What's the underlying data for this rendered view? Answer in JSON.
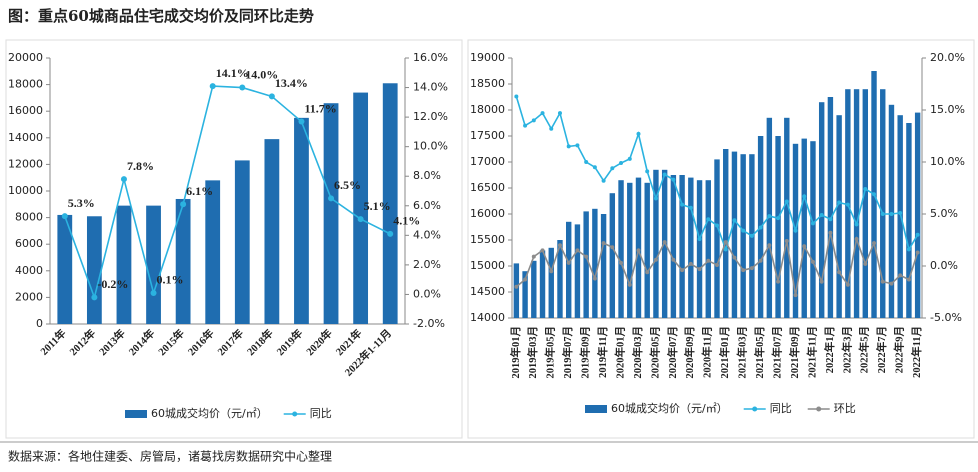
{
  "title": "图：重点60城商品住宅成交均价及同环比走势",
  "source": "数据来源：各地住建委、房管局，诸葛找房数据研究中心整理",
  "chart_data": [
    {
      "type": "bar_line",
      "categories": [
        "2011年",
        "2012年",
        "2013年",
        "2014年",
        "2015年",
        "2016年",
        "2017年",
        "2018年",
        "2019年",
        "2020年",
        "2021年",
        "2022年1-11月"
      ],
      "series": [
        {
          "name": "60城成交均价（元/㎡）",
          "type": "bar",
          "color": "#1f6db0",
          "values": [
            8200,
            8100,
            8900,
            8900,
            9400,
            10800,
            12300,
            13900,
            15500,
            16600,
            17400,
            18100
          ]
        },
        {
          "name": "同比",
          "type": "line",
          "axis": "y2",
          "color": "#2bb3e0",
          "values": [
            5.3,
            -0.2,
            7.8,
            0.1,
            6.1,
            14.1,
            14.0,
            13.4,
            11.7,
            6.5,
            5.1,
            4.1
          ],
          "value_labels": [
            "5.3%",
            "-0.2%",
            "7.8%",
            "0.1%",
            "6.1%",
            "14.1%",
            "14.0%",
            "13.4%",
            "11.7%",
            "6.5%",
            "5.1%",
            "4.1%"
          ]
        }
      ],
      "ylim": [
        0,
        20000
      ],
      "yticks": [
        0,
        2000,
        4000,
        6000,
        8000,
        10000,
        12000,
        14000,
        16000,
        18000,
        20000
      ],
      "y2lim": [
        -2,
        16
      ],
      "y2ticks": [
        {
          "value": -2,
          "label": "-2.0%"
        },
        {
          "value": 0,
          "label": "0.0%"
        },
        {
          "value": 2,
          "label": "2.0%"
        },
        {
          "value": 4,
          "label": "4.0%"
        },
        {
          "value": 6,
          "label": "6.0%"
        },
        {
          "value": 8,
          "label": "8.0%"
        },
        {
          "value": 10,
          "label": "10.0%"
        },
        {
          "value": 12,
          "label": "12.0%"
        },
        {
          "value": 14,
          "label": "14.0%"
        },
        {
          "value": 16,
          "label": "16.0%"
        }
      ]
    },
    {
      "type": "bar_line",
      "categories": [
        "2019年01月",
        null,
        "2019年03月",
        null,
        "2019年05月",
        null,
        "2019年07月",
        null,
        "2019年09月",
        null,
        "2019年11月",
        null,
        "2020年01月",
        null,
        "2020年03月",
        null,
        "2020年05月",
        null,
        "2020年07月",
        null,
        "2020年09月",
        null,
        "2020年11月",
        null,
        "2021年01月",
        null,
        "2021年03月",
        null,
        "2021年05月",
        null,
        "2021年07月",
        null,
        "2021年09月",
        null,
        "2021年11月",
        null,
        "2022年1月",
        null,
        "2022年3月",
        null,
        "2022年5月",
        null,
        "2022年7月",
        null,
        "2022年9月",
        null,
        "2022年11月"
      ],
      "series": [
        {
          "name": "60城成交均价（元/㎡）",
          "type": "bar",
          "color": "#1f6db0",
          "values": [
            15050,
            14900,
            15100,
            15300,
            15350,
            15500,
            15850,
            15800,
            16050,
            16100,
            16000,
            16400,
            16650,
            16600,
            16700,
            16600,
            16850,
            16850,
            16750,
            16750,
            16700,
            16650,
            16650,
            17050,
            17250,
            17200,
            17150,
            17150,
            17500,
            17850,
            17500,
            17850,
            17350,
            17450,
            17400,
            18150,
            18250,
            17900,
            18400,
            18400,
            18400,
            18750,
            18400,
            18100,
            17900,
            17750,
            17950
          ]
        },
        {
          "name": "同比",
          "type": "line",
          "axis": "y2",
          "color": "#2bb3e0",
          "values": [
            16.3,
            13.5,
            14.0,
            14.7,
            13.2,
            14.7,
            11.5,
            11.6,
            10.0,
            9.5,
            8.2,
            9.4,
            9.9,
            10.3,
            12.7,
            9.1,
            6.5,
            8.8,
            8.3,
            5.9,
            5.6,
            2.6,
            4.5,
            3.9,
            1.6,
            4.4,
            3.4,
            2.9,
            3.7,
            4.8,
            4.6,
            6.2,
            3.4,
            6.7,
            4.1,
            4.9,
            4.5,
            6.1,
            5.9,
            4.0,
            7.4,
            6.9,
            5.0,
            5.0,
            5.1,
            1.6,
            3.0
          ]
        },
        {
          "name": "环比",
          "type": "line",
          "axis": "y2",
          "color": "#8c8c8c",
          "values": [
            -2.0,
            -1.3,
            0.9,
            1.5,
            -0.5,
            2.0,
            0.3,
            1.5,
            0.9,
            -1.2,
            2.2,
            1.8,
            0.3,
            -1.8,
            1.5,
            -0.6,
            0.6,
            2.3,
            0.6,
            -0.4,
            0.2,
            -0.3,
            0.5,
            0.1,
            2.3,
            0.8,
            -0.4,
            -0.2,
            0.5,
            2.0,
            -1.5,
            2.4,
            -2.8,
            1.9,
            0.4,
            -1.5,
            3.2,
            -0.6,
            -1.8,
            2.6,
            0.2,
            2.2,
            -1.5,
            -1.7,
            -0.9,
            -1.3,
            1.3
          ]
        }
      ],
      "ylim": [
        14000,
        19000
      ],
      "yticks": [
        14000,
        14500,
        15000,
        15500,
        16000,
        16500,
        17000,
        17500,
        18000,
        18500,
        19000
      ],
      "y2lim": [
        -5,
        20
      ],
      "y2ticks": [
        {
          "value": -5,
          "label": "-5.0%"
        },
        {
          "value": 0,
          "label": "0.0%"
        },
        {
          "value": 5,
          "label": "5.0%"
        },
        {
          "value": 10,
          "label": "10.0%"
        },
        {
          "value": 15,
          "label": "15.0%"
        },
        {
          "value": 20,
          "label": "20.0%"
        }
      ]
    }
  ]
}
